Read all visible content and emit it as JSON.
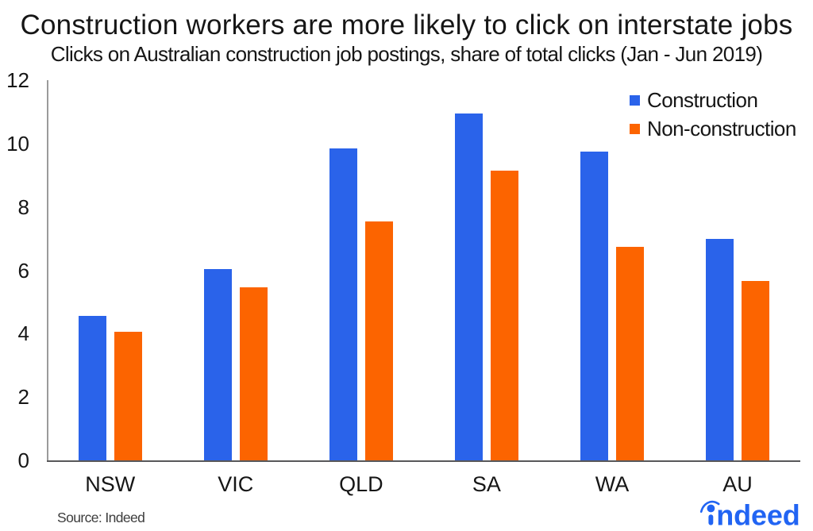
{
  "chart_data": {
    "type": "bar",
    "title": "Construction workers are more likely to click on interstate jobs",
    "subtitle": "Clicks on Australian construction job postings, share of total clicks (Jan - Jun 2019)",
    "categories": [
      "NSW",
      "VIC",
      "QLD",
      "SA",
      "WA",
      "AU"
    ],
    "series": [
      {
        "name": "Construction",
        "color": "#2a63ea",
        "values": [
          4.55,
          6.05,
          9.85,
          10.95,
          9.75,
          7.0
        ]
      },
      {
        "name": "Non-construction",
        "color": "#fc6400",
        "values": [
          4.05,
          5.45,
          7.55,
          9.15,
          6.75,
          5.65
        ]
      }
    ],
    "xlabel": "",
    "ylabel": "",
    "ylim": [
      0,
      12
    ],
    "yticks": [
      0,
      2,
      4,
      6,
      8,
      10,
      12
    ],
    "grid": false,
    "legend_position": "top-right"
  },
  "source_note": "Source: Indeed",
  "brand": {
    "logo_text": "indeed",
    "logo_color": "#2164f3"
  },
  "colors": {
    "background": "#ffffff",
    "text": "#161616",
    "y_axis_line": "#9b9b9b",
    "x_axis_line": "#58585a",
    "source_text": "#3d3d3d"
  }
}
